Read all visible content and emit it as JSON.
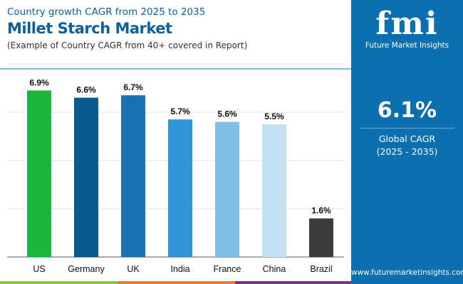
{
  "header": {
    "subtitle": "Country growth CAGR from 2025 to 2035",
    "title": "Millet Starch Market",
    "note": "(Example of Country CAGR from 40+ covered in Report)"
  },
  "panel": {
    "logo": "fmi",
    "logo_text": "Future Market Insights",
    "value": "6.1%",
    "label": "Global CAGR",
    "period": "(2025 - 2035)",
    "url": "www.futuremarketinsights.com",
    "color": "#0b6fb0"
  },
  "chart_data": {
    "type": "bar",
    "categories": [
      "US",
      "Germany",
      "UK",
      "India",
      "France",
      "China",
      "Brazil"
    ],
    "values": [
      6.9,
      6.6,
      6.7,
      5.7,
      5.6,
      5.5,
      1.6
    ],
    "labels": [
      "6.9%",
      "6.6%",
      "6.7%",
      "5.7%",
      "5.6%",
      "5.5%",
      "1.6%"
    ],
    "colors": [
      "#1db83a",
      "#0a5a8f",
      "#1a73b0",
      "#2f95d6",
      "#7fbde4",
      "#c2e1f3",
      "#3d3d3d"
    ],
    "ylim": [
      0,
      8
    ],
    "grid": true,
    "title": "",
    "xlabel": "",
    "ylabel": ""
  }
}
